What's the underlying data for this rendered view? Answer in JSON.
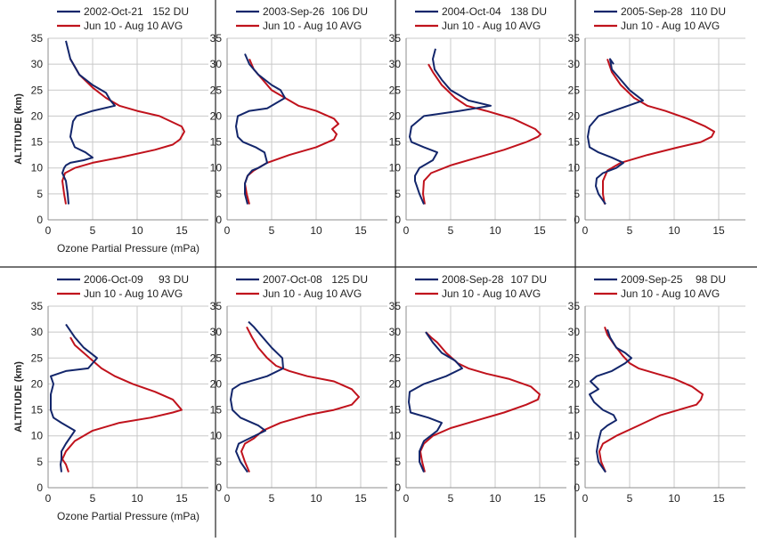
{
  "colors": {
    "observed": "#13266b",
    "average": "#c0121c",
    "grid": "#c8c8c8",
    "axis": "#8c8c8c",
    "border": "#222222"
  },
  "axes": {
    "ylabel": "ALTITUDE (km)",
    "xlabel": "Ozone Partial Pressure (mPa)",
    "yticks": [
      "0",
      "5",
      "10",
      "15",
      "20",
      "25",
      "30",
      "35"
    ],
    "xticks": [
      "0",
      "5",
      "10",
      "15"
    ],
    "xlim": [
      0,
      18
    ],
    "ylim": [
      0,
      35
    ]
  },
  "chart_data": [
    {
      "type": "line",
      "legend": [
        "2002-Oct-21",
        "152 DU",
        "Jun 10 - Aug 10 AVG"
      ],
      "series": [
        {
          "name": "2002-Oct-21",
          "x": [
            2.3,
            2.2,
            2.0,
            1.6,
            1.8,
            2.0,
            2.5,
            4.0,
            5.0,
            4.2,
            3.0,
            2.5,
            2.7,
            2.8,
            3.2,
            5.0,
            7.5,
            7.0,
            6.5,
            5.0,
            3.5,
            2.5,
            2.0
          ],
          "y": [
            3,
            5,
            7.5,
            9,
            10,
            10.5,
            11,
            11.5,
            12,
            13,
            14,
            16,
            18,
            19,
            20,
            21,
            22,
            23,
            24.5,
            26,
            28,
            31,
            34.5
          ]
        },
        {
          "name": "Jun 10 - Aug 10 AVG",
          "x": [
            2.0,
            1.8,
            1.6,
            1.9,
            3.0,
            5.0,
            8.0,
            12.0,
            14.0,
            14.8,
            15.3,
            15.0,
            12.5,
            10.0,
            8.0,
            6.5,
            5.0,
            3.5,
            2.5
          ],
          "y": [
            3,
            5,
            7.5,
            9,
            10,
            11,
            12,
            13.5,
            14.5,
            15.5,
            17,
            18,
            20,
            21,
            22,
            23.5,
            25.5,
            28,
            31
          ]
        }
      ]
    },
    {
      "type": "line",
      "legend": [
        "2003-Sep-26",
        "106 DU",
        "Jun 10 - Aug 10 AVG"
      ],
      "series": [
        {
          "name": "2003-Sep-26",
          "x": [
            2.3,
            2.0,
            2.0,
            2.3,
            2.8,
            3.5,
            4.5,
            4.2,
            3.2,
            1.8,
            1.2,
            1.0,
            1.2,
            2.5,
            4.5,
            6.5,
            6.0,
            5.0,
            3.5,
            2.5,
            2.0
          ],
          "y": [
            3,
            5,
            7,
            8.5,
            9.5,
            10,
            11,
            13,
            14,
            15,
            16,
            18,
            20,
            21,
            21.5,
            23.5,
            25,
            26,
            28,
            30,
            32
          ]
        },
        {
          "name": "Jun 10 - Aug 10 AVG",
          "x": [
            2.5,
            2.2,
            2.0,
            2.3,
            3.0,
            4.5,
            7.0,
            10.0,
            12.0,
            12.3,
            11.8,
            12.5,
            12.0,
            10.0,
            8.0,
            6.5,
            5.0,
            4.0,
            3.0,
            2.5
          ],
          "y": [
            3,
            5,
            7,
            8.5,
            9.5,
            11,
            12.5,
            14,
            15.5,
            16.5,
            17.5,
            18.5,
            19.5,
            21,
            22,
            23.5,
            25,
            27,
            29,
            31
          ]
        }
      ]
    },
    {
      "type": "line",
      "legend": [
        "2004-Oct-04",
        "138 DU",
        "Jun 10 - Aug 10 AVG"
      ],
      "series": [
        {
          "name": "2004-Oct-04",
          "x": [
            2.0,
            1.5,
            1.2,
            1.0,
            1.0,
            1.5,
            3.0,
            3.5,
            2.0,
            0.6,
            0.4,
            0.6,
            2.0,
            6.0,
            9.5,
            7.0,
            5.0,
            4.0,
            3.2,
            3.0,
            3.3
          ],
          "y": [
            3,
            5,
            6.5,
            7.5,
            8.5,
            10,
            11.5,
            13,
            14,
            15,
            16,
            18,
            20,
            21,
            22,
            23,
            25,
            27,
            29,
            31,
            33
          ]
        },
        {
          "name": "Jun 10 - Aug 10 AVG",
          "x": [
            2.1,
            1.9,
            2.0,
            2.8,
            5.0,
            8.0,
            11.0,
            13.5,
            14.8,
            15.1,
            14.5,
            12.0,
            9.0,
            6.8,
            5.5,
            4.0,
            3.0,
            2.5
          ],
          "y": [
            3,
            5,
            7.5,
            9,
            10.5,
            12,
            13.5,
            15,
            16,
            16.5,
            17.5,
            19.5,
            21,
            22,
            23.5,
            26,
            28.5,
            30
          ]
        }
      ]
    },
    {
      "type": "line",
      "legend": [
        "2005-Sep-28",
        "110 DU",
        "Jun 10 - Aug 10 AVG"
      ],
      "series": [
        {
          "name": "2005-Sep-28",
          "x": [
            2.3,
            1.5,
            1.2,
            1.3,
            2.0,
            3.5,
            4.3,
            3.0,
            1.5,
            0.5,
            0.3,
            0.5,
            1.5,
            4.0,
            6.5,
            5.0,
            4.0,
            3.0,
            2.8,
            3.2
          ],
          "y": [
            3,
            5,
            6.5,
            8,
            9,
            10,
            11,
            12,
            13,
            14,
            16,
            18,
            20,
            21.5,
            23,
            25,
            27,
            29,
            31,
            30
          ]
        },
        {
          "name": "Jun 10 - Aug 10 AVG",
          "x": [
            2.2,
            2.0,
            2.0,
            2.5,
            4.0,
            7.0,
            10.5,
            13.0,
            14.2,
            14.5,
            13.5,
            11.5,
            9.0,
            7.0,
            5.5,
            4.0,
            3.0,
            2.5
          ],
          "y": [
            3,
            5,
            7.5,
            9.5,
            11,
            12.5,
            14,
            15,
            16,
            17,
            18,
            19.5,
            21,
            22,
            23.5,
            26,
            28.5,
            31
          ]
        }
      ]
    },
    {
      "type": "line",
      "legend": [
        "2006-Oct-09",
        "93 DU",
        "Jun 10 - Aug 10 AVG"
      ],
      "series": [
        {
          "name": "2006-Oct-09",
          "x": [
            1.5,
            1.4,
            1.5,
            1.5,
            2.0,
            3.0,
            1.5,
            0.6,
            0.3,
            0.3,
            0.6,
            0.3,
            2.0,
            4.5,
            5.5,
            4.0,
            3.0,
            2.0
          ],
          "y": [
            3,
            4.5,
            5.5,
            7,
            8.5,
            11,
            12.5,
            13.5,
            15,
            18,
            20,
            21.5,
            22.5,
            23,
            25,
            27,
            29,
            31.5
          ]
        },
        {
          "name": "Jun 10 - Aug 10 AVG",
          "x": [
            2.3,
            2.0,
            1.6,
            2.0,
            3.0,
            5.0,
            8.0,
            11.5,
            14.0,
            15.0,
            14.5,
            14.0,
            12.0,
            9.5,
            7.5,
            6.0,
            5.0,
            4.0,
            3.0,
            2.5
          ],
          "y": [
            3,
            4.5,
            5.5,
            7,
            9,
            11,
            12.5,
            13.5,
            14.5,
            15,
            16,
            17,
            18.5,
            20,
            21.5,
            23,
            24.5,
            26,
            27.5,
            29
          ]
        }
      ]
    },
    {
      "type": "line",
      "legend": [
        "2007-Oct-08",
        "125 DU",
        "Jun 10 - Aug 10 AVG"
      ],
      "series": [
        {
          "name": "2007-Oct-08",
          "x": [
            2.3,
            1.5,
            1.0,
            1.3,
            2.5,
            4.3,
            3.5,
            1.5,
            0.6,
            0.4,
            0.6,
            1.5,
            4.5,
            6.3,
            6.2,
            5.0,
            4.0,
            3.0,
            2.4
          ],
          "y": [
            3,
            5,
            7,
            8.5,
            9.5,
            11,
            12,
            13.5,
            15,
            17,
            19,
            20,
            21.5,
            23,
            25,
            27,
            29,
            31,
            32
          ]
        },
        {
          "name": "Jun 10 - Aug 10 AVG",
          "x": [
            2.5,
            2.0,
            1.6,
            2.0,
            3.0,
            4.0,
            6.0,
            9.0,
            12.0,
            14.0,
            14.8,
            14.0,
            12.0,
            9.0,
            7.0,
            5.5,
            4.5,
            3.5,
            2.8,
            2.2
          ],
          "y": [
            3,
            5,
            7,
            8.5,
            9.5,
            11,
            12.5,
            14,
            15,
            16,
            17.5,
            19,
            20.5,
            21.5,
            22.5,
            23.5,
            25,
            27,
            29,
            31
          ]
        }
      ]
    },
    {
      "type": "line",
      "legend": [
        "2008-Sep-28",
        "107 DU",
        "Jun 10 - Aug 10 AVG"
      ],
      "series": [
        {
          "name": "2008-Sep-28",
          "x": [
            2.0,
            1.5,
            1.5,
            2.0,
            3.5,
            4.0,
            2.5,
            0.5,
            0.3,
            0.4,
            2.0,
            4.5,
            6.3,
            5.5,
            4.0,
            3.0,
            2.2
          ],
          "y": [
            3,
            5,
            7,
            9,
            11,
            12.5,
            13.5,
            14.5,
            16.5,
            18.5,
            20,
            21.5,
            23,
            24.5,
            26,
            28,
            30
          ]
        },
        {
          "name": "Jun 10 - Aug 10 AVG",
          "x": [
            2.1,
            1.8,
            1.6,
            2.0,
            3.0,
            5.0,
            8.0,
            11.0,
            13.5,
            14.8,
            15.0,
            14.0,
            11.5,
            9.0,
            7.0,
            5.8,
            4.5,
            3.5,
            2.8,
            2.2
          ],
          "y": [
            3,
            5,
            7,
            8.5,
            10,
            11.5,
            13,
            14.5,
            16,
            17,
            18,
            19.5,
            21,
            22,
            23,
            24,
            26,
            28,
            29,
            30
          ]
        }
      ]
    },
    {
      "type": "line",
      "legend": [
        "2009-Sep-25",
        "98 DU",
        "Jun 10 - Aug 10 AVG"
      ],
      "series": [
        {
          "name": "2009-Sep-25",
          "x": [
            2.3,
            1.5,
            1.3,
            1.5,
            1.8,
            2.5,
            3.5,
            3.2,
            2.0,
            1.0,
            0.5,
            1.5,
            0.6,
            1.3,
            3.0,
            4.5,
            5.2,
            4.5,
            3.5,
            2.8,
            2.5
          ],
          "y": [
            3,
            5,
            7,
            9,
            11,
            12,
            13,
            14,
            15,
            16.5,
            18,
            19,
            20.5,
            21.5,
            22.5,
            24,
            25,
            26,
            27,
            29,
            30.5
          ]
        },
        {
          "name": "Jun 10 - Aug 10 AVG",
          "x": [
            2.3,
            1.8,
            1.6,
            2.0,
            3.5,
            6.0,
            8.5,
            10.5,
            12.5,
            13.0,
            13.2,
            12.0,
            10.0,
            8.0,
            6.0,
            5.0,
            4.2,
            3.3,
            2.5,
            2.2
          ],
          "y": [
            3,
            5,
            7,
            8.5,
            10,
            12,
            14,
            15,
            16,
            17,
            18,
            19.5,
            21,
            22,
            23,
            24,
            25.5,
            27.5,
            29.5,
            31
          ]
        }
      ]
    }
  ]
}
